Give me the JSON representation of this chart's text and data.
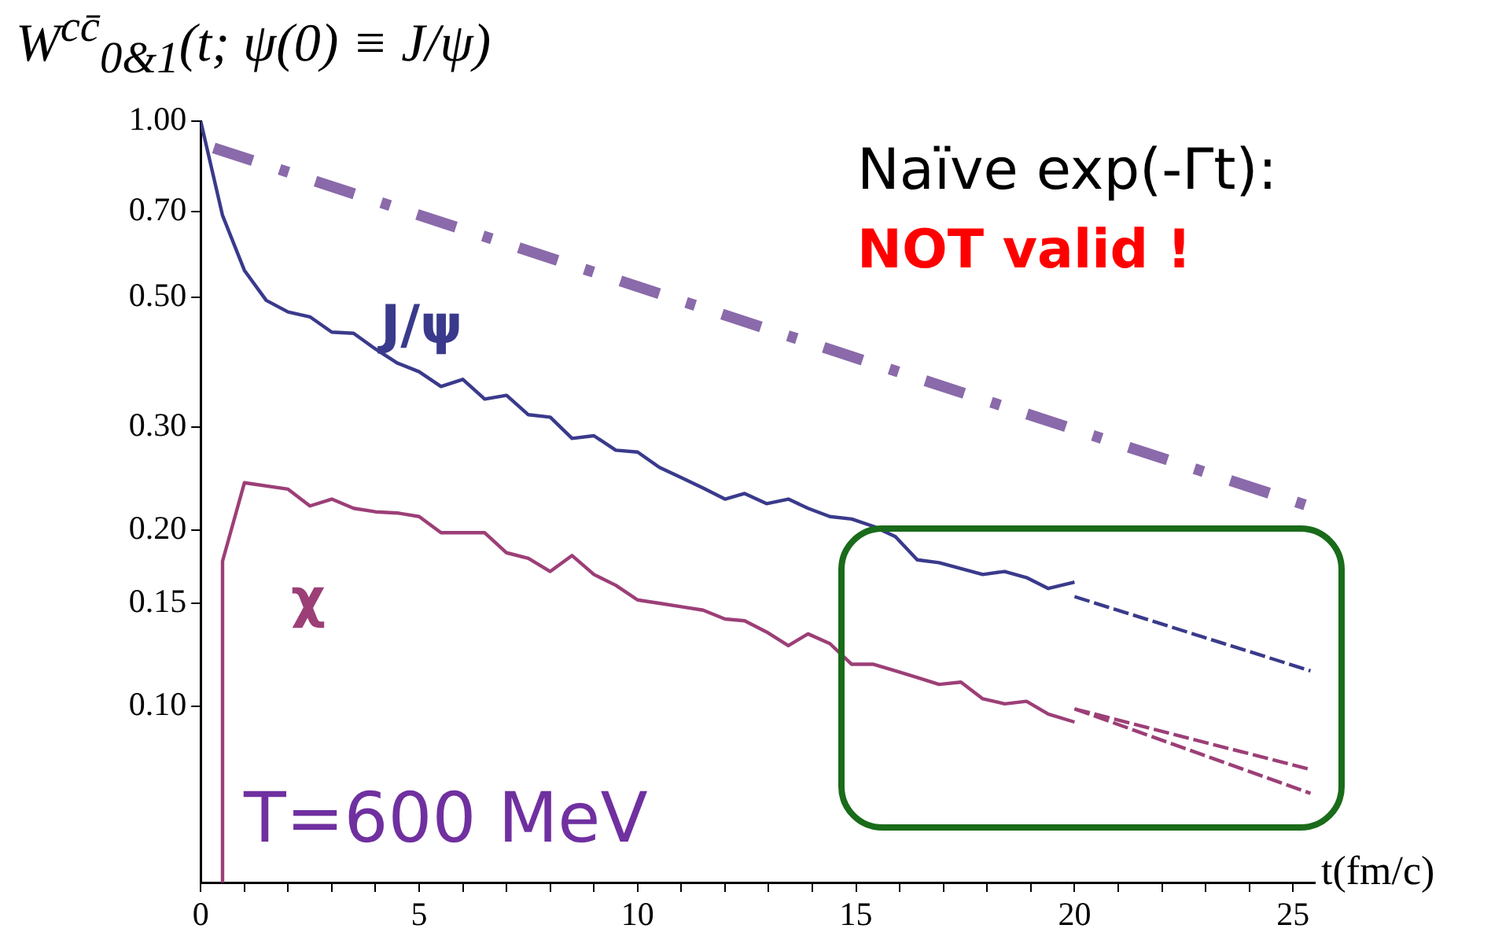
{
  "chart_data": {
    "type": "line",
    "ylabel": "W$^{cc̄}$$_{0&1}$(t; ψ(0) ≡ J/ψ)",
    "xlabel": "t(fm/c)",
    "annotations": [
      "Naïve exp(-Γt):",
      "NOT valid !",
      "T=600 MeV"
    ],
    "series": [
      {
        "x": [
          0.3,
          25.35
        ],
        "values": [
          0.9,
          0.22
        ],
        "color": "#8a6aaa",
        "line_style": "dashed"
      },
      {
        "name": "J/ψ",
        "color": "#3a3a8c",
        "x": [
          0,
          0.5,
          1,
          1.5,
          2,
          2.5,
          3,
          3.5,
          4,
          4.5,
          5,
          5.5,
          6,
          6.5,
          7,
          7.5,
          8,
          8.5,
          9,
          9.5,
          10,
          10.5,
          11,
          11.5,
          12,
          12.45,
          12.95,
          13.45,
          13.9,
          14.4,
          14.9,
          15.4,
          15.9,
          16.4,
          16.9,
          17.4,
          17.9,
          18.4,
          18.9,
          19.4,
          20
        ],
        "values": [
          1.0,
          0.69,
          0.556,
          0.494,
          0.472,
          0.463,
          0.436,
          0.434,
          0.408,
          0.386,
          0.373,
          0.352,
          0.362,
          0.335,
          0.34,
          0.315,
          0.312,
          0.287,
          0.29,
          0.274,
          0.272,
          0.256,
          0.246,
          0.236,
          0.226,
          0.231,
          0.222,
          0.226,
          0.218,
          0.211,
          0.209,
          0.203,
          0.195,
          0.178,
          0.176,
          0.172,
          0.168,
          0.17,
          0.166,
          0.159,
          0.163
        ]
      },
      {
        "color": "#3a3a8c",
        "x": [
          20,
          25.4
        ],
        "values": [
          0.154,
          0.115
        ],
        "line_style": "dashed"
      },
      {
        "name": "χ",
        "color": "#9c3f77",
        "x": [
          0.5,
          0.5,
          1,
          2,
          2.5,
          3,
          3.5,
          4,
          4.5,
          5,
          5.5,
          6,
          6.5,
          7,
          7.5,
          8,
          8.5,
          9,
          9.5,
          10,
          10.5,
          11,
          11.5,
          12,
          12.45,
          12.95,
          13.45,
          13.9,
          14.4,
          14.9,
          15.4,
          15.9,
          16.4,
          16.9,
          17.4,
          17.9,
          18.4,
          18.9,
          19.4,
          20
        ],
        "values": [
          0.05,
          0.177,
          0.241,
          0.235,
          0.22,
          0.226,
          0.218,
          0.215,
          0.214,
          0.211,
          0.198,
          0.198,
          0.198,
          0.183,
          0.179,
          0.17,
          0.181,
          0.168,
          0.161,
          0.152,
          0.15,
          0.148,
          0.146,
          0.141,
          0.14,
          0.134,
          0.127,
          0.133,
          0.128,
          0.118,
          0.118,
          0.115,
          0.112,
          0.109,
          0.11,
          0.103,
          0.101,
          0.102,
          0.097,
          0.094
        ]
      },
      {
        "color": "#9c3f77",
        "x": [
          20,
          25.4
        ],
        "values": [
          0.099,
          0.078
        ],
        "line_style": "dashed"
      },
      {
        "color": "#9c3f77",
        "x": [
          20,
          25.4
        ],
        "values": [
          0.099,
          0.071
        ],
        "line_style": "dashed"
      }
    ],
    "log": "y",
    "xlim": [
      0,
      25.5
    ],
    "ylim": [
      0.05,
      1.0
    ],
    "xticks": [
      0,
      {
        "value": 1,
        "label": null
      },
      {
        "value": 2,
        "label": null
      },
      {
        "value": 3,
        "label": null
      },
      {
        "value": 4,
        "label": null
      },
      5,
      {
        "value": 6,
        "label": null
      },
      {
        "value": 7,
        "label": null
      },
      {
        "value": 8,
        "label": null
      },
      {
        "value": 9,
        "label": null
      },
      10,
      {
        "value": 11,
        "label": null
      },
      {
        "value": 12,
        "label": null
      },
      {
        "value": 13,
        "label": null
      },
      {
        "value": 14,
        "label": null
      },
      15,
      {
        "value": 16,
        "label": null
      },
      {
        "value": 17,
        "label": null
      },
      {
        "value": 18,
        "label": null
      },
      {
        "value": 19,
        "label": null
      },
      20,
      {
        "value": 21,
        "label": null
      },
      {
        "value": 22,
        "label": null
      },
      {
        "value": 23,
        "label": null
      },
      {
        "value": 24,
        "label": null
      },
      25
    ],
    "yticks": [
      {
        "value": 0.1,
        "label": "0.10"
      },
      {
        "value": 0.15,
        "label": "0.15"
      },
      {
        "value": 0.2,
        "label": "0.20"
      },
      {
        "value": 0.3,
        "label": "0.30"
      },
      {
        "value": 0.5,
        "label": "0.50"
      },
      {
        "value": 0.7,
        "label": "0.70"
      },
      {
        "value": 1.0,
        "label": "1.00"
      }
    ],
    "grid": false,
    "legend": false,
    "marker": "none"
  }
}
